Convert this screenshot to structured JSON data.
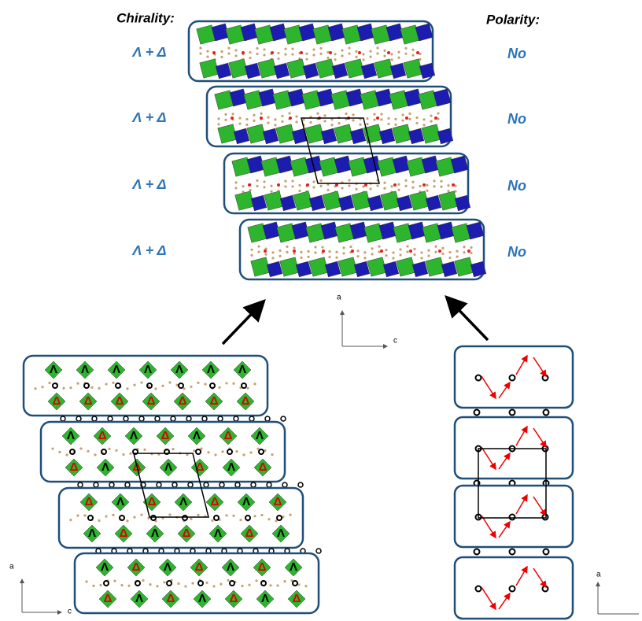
{
  "header": {
    "chirality": "Chirality:",
    "polarity": "Polarity:"
  },
  "layers": [
    {
      "chirality": "Λ + Δ",
      "polarity": "No"
    },
    {
      "chirality": "Λ + Δ",
      "polarity": "No"
    },
    {
      "chirality": "Λ + Δ",
      "polarity": "No"
    },
    {
      "chirality": "Λ + Δ",
      "polarity": "No"
    }
  ],
  "axes_top": {
    "a": "a",
    "c": "c"
  },
  "axes_left": {
    "a": "a",
    "c": "c"
  },
  "axes_right": {
    "a": "a"
  },
  "lower_left_labels": [
    {
      "top": [
        "Λ",
        "Λ",
        "Λ",
        "Λ",
        "Λ",
        "Λ",
        "Λ"
      ],
      "bottom": [
        "Δ",
        "Δ",
        "Δ",
        "Δ",
        "Δ",
        "Δ",
        "Δ"
      ]
    },
    {
      "top": [
        "Λ",
        "Δ",
        "Λ",
        "Δ",
        "Λ",
        "Δ",
        "Λ"
      ],
      "bottom": [
        "Δ",
        "Λ",
        "Δ",
        "Λ",
        "Δ",
        "Λ",
        "Δ"
      ]
    },
    {
      "top": [
        "Δ",
        "Λ",
        "Δ",
        "Λ",
        "Δ",
        "Λ",
        "Δ"
      ],
      "bottom": [
        "Λ",
        "Δ",
        "Λ",
        "Δ",
        "Λ",
        "Δ",
        "Λ"
      ]
    },
    {
      "top": [
        "Λ",
        "Δ",
        "Λ",
        "Δ",
        "Λ",
        "Δ",
        "Λ"
      ],
      "bottom": [
        "Δ",
        "Λ",
        "Δ",
        "Λ",
        "Δ",
        "Λ",
        "Δ"
      ]
    }
  ]
}
